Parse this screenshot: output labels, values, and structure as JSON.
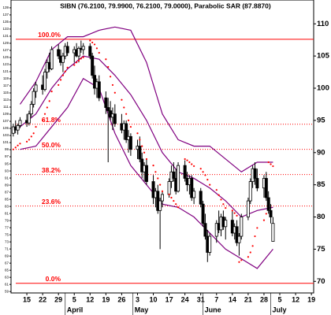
{
  "chart_data": {
    "type": "candlestick",
    "title": "SIBN (76.2100, 79.9900, 76.2100, 79.0000), Parabolic SAR (87.8870)",
    "dates": [
      "Mar 9",
      "Mar 10",
      "Mar 11",
      "Mar 12",
      "Mar 15",
      "Mar 16",
      "Mar 17",
      "Mar 18",
      "Mar 19",
      "Mar 22",
      "Mar 23",
      "Mar 24",
      "Mar 25",
      "Mar 26",
      "Mar 29",
      "Mar 30",
      "Mar 31",
      "Apr 1",
      "Apr 2",
      "Apr 5",
      "Apr 6",
      "Apr 7",
      "Apr 8",
      "Apr 9",
      "Apr 12",
      "Apr 13",
      "Apr 14",
      "Apr 15",
      "Apr 16",
      "Apr 19",
      "Apr 20",
      "Apr 21",
      "Apr 22",
      "Apr 23",
      "Apr 26",
      "Apr 27",
      "Apr 28",
      "Apr 29",
      "Apr 30",
      "May 3",
      "May 4",
      "May 5",
      "May 6",
      "May 7",
      "May 10",
      "May 11",
      "May 12",
      "May 13",
      "May 14",
      "May 17",
      "May 18",
      "May 19",
      "May 20",
      "May 21",
      "May 24",
      "May 25",
      "May 26",
      "May 27",
      "May 28",
      "May 31",
      "Jun 1",
      "Jun 2",
      "Jun 3",
      "Jun 4",
      "Jun 7",
      "Jun 8",
      "Jun 9",
      "Jun 10",
      "Jun 11",
      "Jun 14",
      "Jun 15",
      "Jun 16",
      "Jun 17",
      "Jun 18",
      "Jun 21",
      "Jun 22",
      "Jun 23",
      "Jun 24",
      "Jun 25",
      "Jun 28",
      "Jun 29",
      "Jun 30",
      "Jul 1",
      "Jul 2"
    ],
    "open": [
      93,
      94,
      93.5,
      94.2,
      95,
      94.6,
      96,
      97.5,
      99.5,
      100.5,
      99.8,
      102.5,
      104,
      103,
      106,
      105,
      104,
      105,
      106.5,
      105.5,
      106,
      105,
      106.2,
      106,
      106.5,
      105,
      102,
      100,
      101,
      98.5,
      97,
      96.5,
      95.5,
      96,
      94.5,
      93.5,
      94.5,
      92,
      92.5,
      90.5,
      91,
      89,
      87,
      88,
      85.5,
      83,
      84,
      81,
      82.5,
      83.5,
      85.5,
      87,
      86,
      84,
      88,
      86,
      85,
      86,
      83,
      84,
      82,
      79,
      77,
      74.5,
      77,
      79,
      78,
      80,
      78.5,
      79.5,
      77.5,
      78.5,
      76,
      77,
      80,
      82.5,
      85.5,
      87.5,
      86,
      84.5,
      86,
      83,
      81,
      76.21
    ],
    "high": [
      94.5,
      95,
      94.5,
      95.5,
      96,
      96.5,
      98,
      100,
      101,
      102,
      103,
      104.5,
      105.5,
      106.5,
      106.8,
      106,
      105.5,
      107,
      107.2,
      106.5,
      107,
      106.5,
      107.4,
      107,
      107,
      105.5,
      103.5,
      101.5,
      102,
      99.5,
      98.5,
      98,
      97,
      97.5,
      96,
      95,
      95,
      93.5,
      93,
      92,
      92.5,
      90,
      88.5,
      89,
      86.5,
      84.5,
      85,
      83,
      84,
      86,
      88,
      88.5,
      87.5,
      88.5,
      88.8,
      87,
      86.5,
      86.5,
      84.5,
      84.5,
      82.5,
      80.5,
      78,
      77.5,
      79.5,
      81,
      80.5,
      81,
      80,
      81,
      79,
      79.5,
      77.5,
      80.5,
      83,
      86,
      88,
      88.5,
      87.5,
      86.5,
      87,
      84,
      82,
      79.99
    ],
    "low": [
      92.5,
      93,
      92.8,
      93.8,
      94,
      94.2,
      95.5,
      97,
      98.5,
      99,
      99.5,
      101.5,
      102.5,
      102.8,
      104.5,
      103.5,
      102.5,
      104.5,
      105,
      104,
      104.8,
      104,
      105.5,
      105.2,
      104.5,
      101.5,
      99,
      98.5,
      98,
      96,
      88.5,
      95,
      93.5,
      94,
      93,
      92,
      91.5,
      90,
      89.5,
      89,
      88.5,
      86,
      85.5,
      85,
      82,
      81.5,
      80.5,
      75,
      81.5,
      83,
      84.5,
      85.5,
      83.5,
      83.8,
      85.5,
      84,
      83.5,
      82.5,
      82,
      81.5,
      78.5,
      76.5,
      73,
      74,
      76,
      77.5,
      77,
      78,
      76.5,
      77,
      76.5,
      75.5,
      74,
      76.5,
      79.5,
      82,
      84.5,
      85,
      84,
      83,
      82.5,
      80.5,
      79,
      76.21
    ],
    "close": [
      94,
      93.5,
      94.2,
      95,
      94.6,
      96,
      97.5,
      99.5,
      100.5,
      99.8,
      102.5,
      104,
      103,
      106,
      105,
      104,
      105,
      106.5,
      105.5,
      106,
      105,
      106.2,
      106,
      106.5,
      105,
      102,
      100,
      101,
      98.5,
      97,
      96.5,
      95.5,
      96,
      94.5,
      93.5,
      94.5,
      92,
      92.5,
      90.5,
      91,
      89,
      87,
      88,
      85.5,
      83,
      84,
      81,
      82.5,
      83.5,
      85.5,
      87,
      86,
      84,
      88,
      86,
      85,
      86,
      83,
      84,
      82,
      79,
      77,
      74.5,
      77,
      79,
      78,
      80,
      78.5,
      79.5,
      77.5,
      78.5,
      76,
      77,
      80,
      82.5,
      85.5,
      87.5,
      86,
      84.5,
      86,
      83,
      81,
      80,
      79
    ],
    "candle_color": "#000000",
    "sar": {
      "color": "#ff0000",
      "values": [
        90.5,
        90.8,
        91.1,
        91.4,
        91.7,
        92,
        92.5,
        93,
        94,
        95,
        96,
        97,
        98,
        99.5,
        100.5,
        101.3,
        102,
        102.6,
        103.2,
        103.6,
        104,
        104.3,
        104.6,
        104.8,
        107.4,
        107.1,
        106.8,
        106.2,
        105.5,
        104.5,
        103.3,
        101.8,
        100.5,
        99.3,
        98.2,
        97,
        96,
        95,
        94,
        93,
        92,
        91,
        90,
        89,
        88,
        87,
        86,
        85,
        84,
        83.5,
        83,
        82.5,
        82,
        81.5,
        89,
        88.8,
        88.5,
        88.2,
        87.9,
        87.5,
        87,
        86.5,
        85.8,
        85,
        84.2,
        83.4,
        82.7,
        82,
        81.4,
        81,
        80.6,
        80.2,
        73,
        73.3,
        73.8,
        74.5,
        75.5,
        77,
        78.3,
        79.5,
        80.5,
        88.5,
        88.2,
        87.887
      ]
    },
    "bollinger": {
      "color": "#800080",
      "x": [
        "Mar 12",
        "Mar 19",
        "Mar 26",
        "Apr 2",
        "Apr 9",
        "Apr 16",
        "Apr 23",
        "Apr 30",
        "May 7",
        "May 14",
        "May 21",
        "May 28",
        "Jun 4",
        "Jun 11",
        "Jun 18",
        "Jun 25",
        "Jul 2"
      ],
      "upper": [
        97.5,
        101,
        106,
        108,
        108,
        109,
        109.5,
        109,
        104,
        96,
        92,
        91,
        91,
        89,
        87,
        88.5,
        88.5
      ],
      "middle": [
        94,
        96,
        100,
        103,
        105,
        104.5,
        102,
        99,
        95,
        90,
        87,
        86,
        84.5,
        82.5,
        80,
        81,
        81.5
      ],
      "lower": [
        90.5,
        91,
        94,
        97,
        101.5,
        100,
        93,
        88,
        85,
        82,
        81.5,
        80,
        77.5,
        75,
        73.5,
        72,
        75
      ]
    },
    "fib_color": "#ff0000",
    "fib_levels": [
      {
        "label": "100.0%",
        "value": 107.6
      },
      {
        "label": "61.8%",
        "value": 94.4
      },
      {
        "label": "50.0%",
        "value": 90.5
      },
      {
        "label": "38.2%",
        "value": 86.6
      },
      {
        "label": "23.6%",
        "value": 81.7
      },
      {
        "label": "0.0%",
        "value": 69.7
      }
    ],
    "xlim": [
      "Mar 8",
      "Jul 20"
    ],
    "xticks": [
      {
        "value": "Mar 15",
        "label": "15"
      },
      {
        "value": "Mar 22",
        "label": "22"
      },
      {
        "value": "Mar 29",
        "label": "29"
      },
      {
        "value": "Apr 5",
        "label": "5"
      },
      {
        "value": "Apr 12",
        "label": "12"
      },
      {
        "value": "Apr 19",
        "label": "19"
      },
      {
        "value": "Apr 26",
        "label": "26"
      },
      {
        "value": "May 3",
        "label": "3"
      },
      {
        "value": "May 10",
        "label": "10"
      },
      {
        "value": "May 17",
        "label": "17"
      },
      {
        "value": "May 24",
        "label": "24"
      },
      {
        "value": "May 31",
        "label": "31"
      },
      {
        "value": "Jun 7",
        "label": "7"
      },
      {
        "value": "Jun 14",
        "label": "14"
      },
      {
        "value": "Jun 21",
        "label": "21"
      },
      {
        "value": "Jun 28",
        "label": "28"
      },
      {
        "value": "Jul 5",
        "label": "5"
      },
      {
        "value": "Jul 12",
        "label": "12"
      },
      {
        "value": "Jul 19",
        "label": "19"
      }
    ],
    "months": [
      {
        "value": "Apr 1",
        "label": "April"
      },
      {
        "value": "May 1",
        "label": "May"
      },
      {
        "value": "Jun 1",
        "label": "June"
      },
      {
        "value": "Jul 1",
        "label": "July"
      }
    ],
    "ylim": [
      68.2,
      113.7
    ],
    "yticks": [
      70,
      75,
      80,
      85,
      90,
      95,
      100,
      105,
      110
    ],
    "y2lim": [
      58.6,
      141.2
    ],
    "y2ticks": [
      59,
      61,
      63,
      65,
      67,
      69,
      71,
      73,
      75,
      77,
      79,
      81,
      83,
      85,
      87,
      89,
      91,
      93,
      95,
      97,
      99,
      101,
      103,
      105,
      107,
      109,
      111,
      113,
      115,
      117,
      119,
      121,
      123,
      125,
      127,
      129,
      131,
      133,
      135,
      137,
      139
    ]
  }
}
